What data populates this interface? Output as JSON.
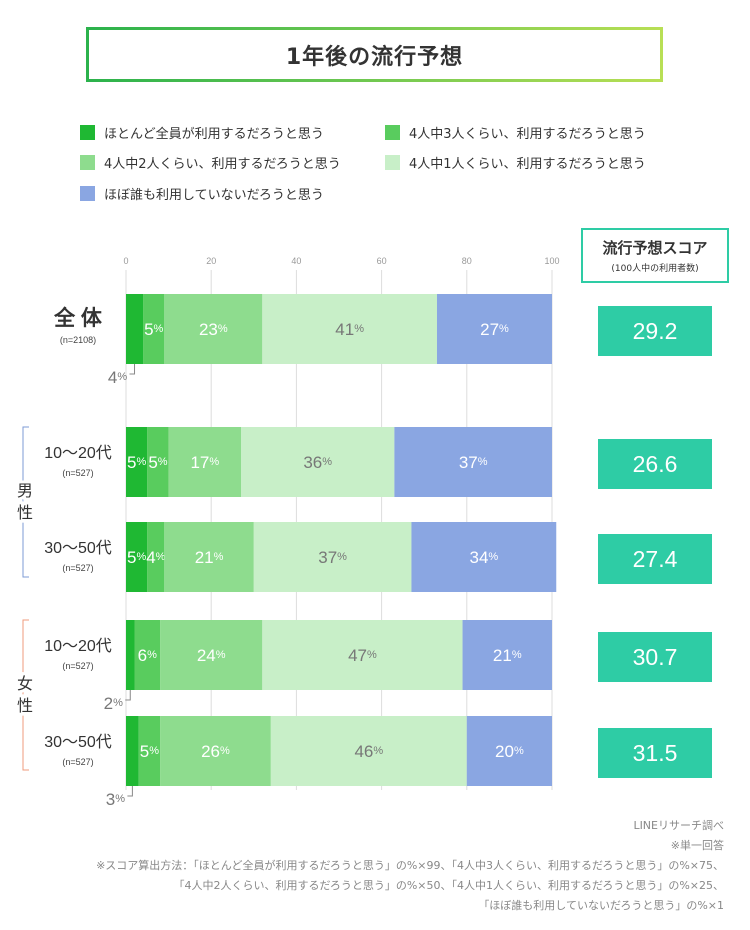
{
  "title": "1年後の流行予想",
  "legend": [
    {
      "label": "ほとんど全員が利用するだろうと思う",
      "color": "#1fb833"
    },
    {
      "label": "4人中3人くらい、利用するだろうと思う",
      "color": "#59cc5e"
    },
    {
      "label": "4人中2人くらい、利用するだろうと思う",
      "color": "#8edc8e"
    },
    {
      "label": "4人中1人くらい、利用するだろうと思う",
      "color": "#c8efc8"
    },
    {
      "label": "ほぼ誰も利用していないだろうと思う",
      "color": "#8aa6e2"
    }
  ],
  "score_header": {
    "title": "流行予想スコア",
    "subtitle": "(100人中の利用者数)"
  },
  "colors": {
    "score_box": "#2ecca5",
    "male_bracket": "#7e9bd6",
    "female_bracket": "#ef9b7c"
  },
  "groups": [
    {
      "label": "男\n性",
      "rows": [
        1,
        2
      ]
    },
    {
      "label": "女\n性",
      "rows": [
        3,
        4
      ]
    }
  ],
  "chart_data": {
    "type": "bar",
    "orientation": "horizontal",
    "stacked": true,
    "xlim": [
      0,
      100
    ],
    "ticks": [
      "0",
      "20",
      "40",
      "60",
      "80",
      "100"
    ],
    "categories": [
      "全 体",
      "10〜20代",
      "30〜50代",
      "10〜20代",
      "30〜50代"
    ],
    "sample_sizes": [
      "(n=2108)",
      "(n=527)",
      "(n=527)",
      "(n=527)",
      "(n=527)"
    ],
    "series": [
      {
        "name": "ほとんど全員が利用するだろうと思う",
        "values": [
          4,
          5,
          5,
          2,
          3
        ]
      },
      {
        "name": "4人中3人くらい、利用するだろうと思う",
        "values": [
          5,
          5,
          4,
          6,
          5
        ]
      },
      {
        "name": "4人中2人くらい、利用するだろうと思う",
        "values": [
          23,
          17,
          21,
          24,
          26
        ]
      },
      {
        "name": "4人中1人くらい、利用するだろうと思う",
        "values": [
          41,
          36,
          37,
          47,
          46
        ]
      },
      {
        "name": "ほぼ誰も利用していないだろうと思う",
        "values": [
          27,
          37,
          34,
          21,
          20
        ]
      }
    ],
    "scores": [
      "29.2",
      "26.6",
      "27.4",
      "30.7",
      "31.5"
    ]
  },
  "footnotes": [
    "LINEリサーチ調べ",
    "※単一回答",
    "※スコア算出方法：「ほとんど全員が利用するだろうと思う」の%×99、「4人中3人くらい、利用するだろうと思う」の%×75、",
    "「4人中2人くらい、利用するだろうと思う」の%×50、「4人中1人くらい、利用するだろうと思う」の%×25、",
    "「ほぼ誰も利用していないだろうと思う」の%×1"
  ]
}
